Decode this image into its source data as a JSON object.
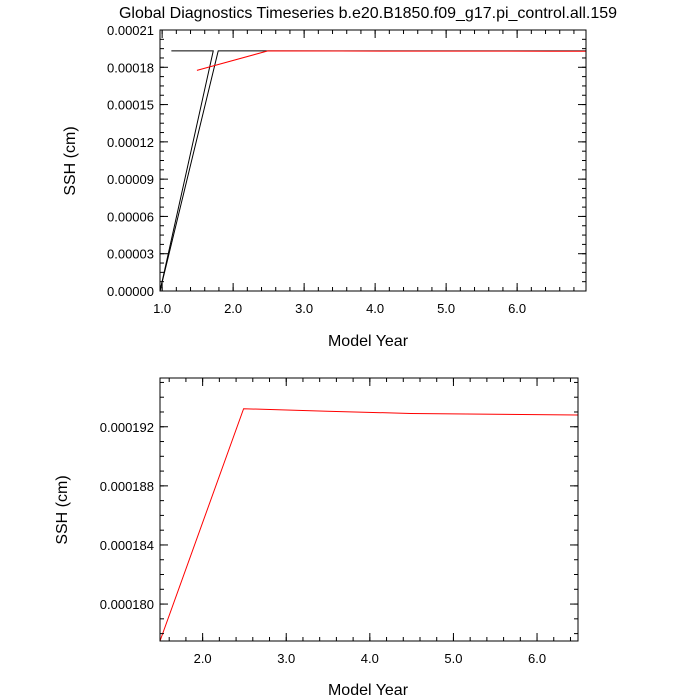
{
  "title": "Global Diagnostics Timeseries b.e20.B1850.f09_g17.pi_control.all.159",
  "colors": {
    "black": "#000000",
    "red": "#ff0000"
  },
  "chart_data": [
    {
      "type": "line",
      "xlabel": "Model Year",
      "ylabel": "SSH (cm)",
      "xlim": [
        0.97,
        6.97
      ],
      "ylim": [
        0,
        0.00021
      ],
      "grid": false,
      "x_ticks": [
        1.0,
        2.0,
        3.0,
        4.0,
        5.0,
        6.0
      ],
      "x_tick_labels": [
        "1.0",
        "2.0",
        "3.0",
        "4.0",
        "5.0",
        "6.0"
      ],
      "y_ticks": [
        0,
        3e-05,
        6e-05,
        9e-05,
        0.00012,
        0.00015,
        0.00018,
        0.00021
      ],
      "y_tick_labels": [
        "0.00000",
        "0.00003",
        "0.00006",
        "0.00009",
        "0.00012",
        "0.00015",
        "0.00018",
        "0.00021"
      ],
      "series": [
        {
          "color": "#000000",
          "x": [
            1.13,
            1.72,
            0.97
          ],
          "y": [
            0.0001932,
            0.0001932,
            0.0
          ]
        },
        {
          "color": "#000000",
          "x": [
            0.97,
            1.79,
            6.97
          ],
          "y": [
            0.0,
            0.0001932,
            0.0001932
          ]
        },
        {
          "color": "#ff0000",
          "x": [
            1.49,
            2.49,
            3.49,
            4.49,
            5.49,
            6.49,
            6.97
          ],
          "y": [
            0.0001775,
            0.0001932,
            0.0001931,
            0.000193,
            0.000193,
            0.0001929,
            0.0001929
          ]
        }
      ]
    },
    {
      "type": "line",
      "xlabel": "Model Year",
      "ylabel": "SSH (cm)",
      "xlim": [
        1.49,
        6.49
      ],
      "ylim": [
        0.0001775,
        0.0001953
      ],
      "grid": false,
      "x_ticks": [
        2.0,
        3.0,
        4.0,
        5.0,
        6.0
      ],
      "x_tick_labels": [
        "2.0",
        "3.0",
        "4.0",
        "5.0",
        "6.0"
      ],
      "y_ticks": [
        0.00018,
        0.000184,
        0.000188,
        0.000192
      ],
      "y_tick_labels": [
        "0.000180",
        "0.000184",
        "0.000188",
        "0.000192"
      ],
      "series": [
        {
          "color": "#ff0000",
          "x": [
            1.49,
            2.49,
            3.49,
            4.49,
            5.49,
            6.49
          ],
          "y": [
            0.0001775,
            0.00019322,
            0.00019305,
            0.0001929,
            0.00019285,
            0.0001928
          ]
        }
      ]
    }
  ]
}
